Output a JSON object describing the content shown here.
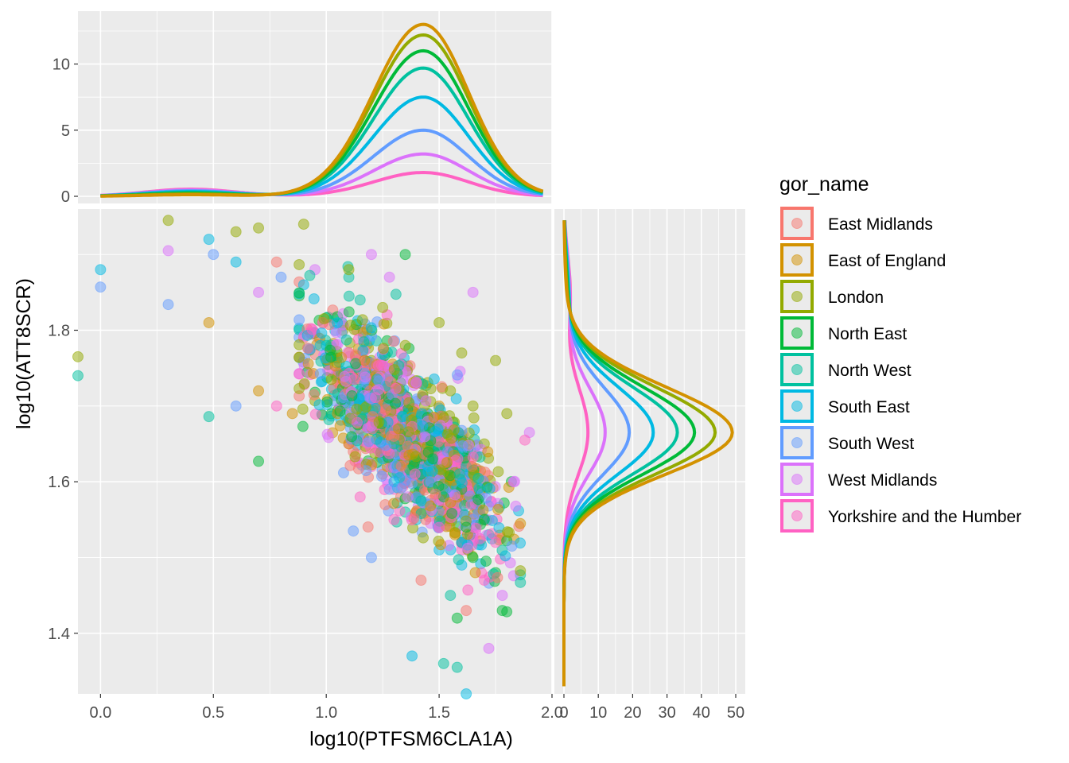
{
  "chart_data": {
    "type": "scatter",
    "xlabel": "log10(PTFSM6CLA1A)",
    "ylabel": "log10(ATT8SCR)",
    "xlim": [
      -0.1,
      2.0
    ],
    "ylim": [
      1.32,
      1.96
    ],
    "x_ticks": [
      "0.0",
      "0.5",
      "1.0",
      "1.5",
      "2.0"
    ],
    "y_ticks": [
      "1.4",
      "1.6",
      "1.8"
    ],
    "top_marginal": {
      "type": "density",
      "ylim": [
        0,
        14
      ],
      "y_ticks": [
        "0",
        "5",
        "10"
      ],
      "stacked_peaks_at_x_1_43": [
        1.8,
        3.2,
        5.0,
        7.5,
        9.7,
        11.0,
        12.2,
        13.0
      ]
    },
    "right_marginal": {
      "type": "density",
      "xlim": [
        0,
        50
      ],
      "x_ticks": [
        "0",
        "10",
        "20",
        "30",
        "40",
        "50"
      ],
      "stacked_peaks_at_y_1_665": [
        7,
        12,
        19,
        26,
        33,
        38,
        44,
        49
      ]
    },
    "legend": {
      "title": "gor_name",
      "entries": [
        {
          "name": "East Midlands",
          "color": "#F8766D"
        },
        {
          "name": "East of England",
          "color": "#D39200"
        },
        {
          "name": "London",
          "color": "#93AA00"
        },
        {
          "name": "North East",
          "color": "#00BA38"
        },
        {
          "name": "North West",
          "color": "#00C19F"
        },
        {
          "name": "South East",
          "color": "#00B9E3"
        },
        {
          "name": "South West",
          "color": "#619CFF"
        },
        {
          "name": "West Midlands",
          "color": "#DB72FB"
        },
        {
          "name": "Yorkshire and the Humber",
          "color": "#FF61C3"
        }
      ]
    },
    "series": [
      {
        "name": "East Midlands",
        "points": [
          [
            0.78,
            1.89
          ],
          [
            0.9,
            1.79
          ],
          [
            1.1,
            1.72
          ],
          [
            1.2,
            1.68
          ],
          [
            1.3,
            1.66
          ],
          [
            1.35,
            1.63
          ],
          [
            1.42,
            1.6
          ],
          [
            1.5,
            1.58
          ],
          [
            1.55,
            1.56
          ],
          [
            1.6,
            1.52
          ],
          [
            1.62,
            1.43
          ],
          [
            1.42,
            1.47
          ],
          [
            1.7,
            1.6
          ],
          [
            1.28,
            1.7
          ],
          [
            1.46,
            1.65
          ],
          [
            1.38,
            1.62
          ],
          [
            1.55,
            1.67
          ],
          [
            1.25,
            1.61
          ],
          [
            1.33,
            1.58
          ],
          [
            1.44,
            1.55
          ]
        ]
      },
      {
        "name": "East of England",
        "points": [
          [
            0.48,
            1.81
          ],
          [
            0.7,
            1.72
          ],
          [
            0.85,
            1.69
          ],
          [
            1.05,
            1.69
          ],
          [
            1.15,
            1.67
          ],
          [
            1.3,
            1.64
          ],
          [
            1.4,
            1.62
          ],
          [
            1.5,
            1.55
          ],
          [
            1.57,
            1.53
          ],
          [
            1.65,
            1.57
          ],
          [
            1.66,
            1.48
          ],
          [
            1.2,
            1.72
          ],
          [
            1.32,
            1.67
          ],
          [
            1.45,
            1.64
          ],
          [
            1.6,
            1.6
          ],
          [
            1.1,
            1.65
          ],
          [
            1.5,
            1.7
          ],
          [
            1.38,
            1.58
          ],
          [
            1.27,
            1.62
          ],
          [
            1.55,
            1.61
          ]
        ]
      },
      {
        "name": "London",
        "points": [
          [
            0.3,
            1.945
          ],
          [
            0.6,
            1.93
          ],
          [
            0.7,
            1.935
          ],
          [
            0.9,
            1.94
          ],
          [
            1.1,
            1.88
          ],
          [
            1.25,
            1.83
          ],
          [
            1.35,
            1.78
          ],
          [
            1.5,
            1.81
          ],
          [
            1.6,
            1.77
          ],
          [
            1.75,
            1.76
          ],
          [
            1.8,
            1.69
          ],
          [
            1.55,
            1.72
          ],
          [
            1.45,
            1.68
          ],
          [
            1.65,
            1.7
          ],
          [
            1.7,
            1.65
          ],
          [
            1.4,
            1.73
          ],
          [
            1.3,
            1.74
          ],
          [
            -0.1,
            1.765
          ],
          [
            1.2,
            1.76
          ],
          [
            1.6,
            1.66
          ]
        ]
      },
      {
        "name": "North East",
        "points": [
          [
            0.7,
            1.627
          ],
          [
            1.35,
            1.9
          ],
          [
            1.05,
            1.74
          ],
          [
            1.2,
            1.7
          ],
          [
            1.4,
            1.66
          ],
          [
            1.5,
            1.62
          ],
          [
            1.6,
            1.59
          ],
          [
            1.7,
            1.55
          ],
          [
            1.75,
            1.48
          ],
          [
            1.78,
            1.43
          ],
          [
            1.58,
            1.42
          ],
          [
            1.65,
            1.5
          ],
          [
            1.55,
            1.65
          ],
          [
            1.45,
            1.69
          ],
          [
            1.35,
            1.64
          ],
          [
            1.68,
            1.57
          ],
          [
            1.82,
            1.6
          ],
          [
            1.62,
            1.54
          ],
          [
            1.52,
            1.58
          ],
          [
            1.42,
            1.61
          ]
        ]
      },
      {
        "name": "North West",
        "points": [
          [
            0.48,
            1.686
          ],
          [
            1.1,
            1.87
          ],
          [
            1.15,
            1.84
          ],
          [
            1.0,
            1.78
          ],
          [
            1.2,
            1.7
          ],
          [
            1.3,
            1.65
          ],
          [
            1.45,
            1.6
          ],
          [
            1.55,
            1.57
          ],
          [
            1.6,
            1.52
          ],
          [
            1.52,
            1.36
          ],
          [
            1.58,
            1.355
          ],
          [
            1.55,
            1.45
          ],
          [
            1.68,
            1.58
          ],
          [
            1.72,
            1.53
          ],
          [
            1.4,
            1.68
          ],
          [
            1.25,
            1.67
          ],
          [
            1.35,
            1.56
          ],
          [
            1.62,
            1.62
          ],
          [
            -0.1,
            1.74
          ],
          [
            1.48,
            1.63
          ]
        ]
      },
      {
        "name": "South East",
        "points": [
          [
            0.48,
            1.92
          ],
          [
            0.6,
            1.89
          ],
          [
            0.9,
            1.86
          ],
          [
            1.0,
            1.76
          ],
          [
            1.1,
            1.71
          ],
          [
            1.2,
            1.67
          ],
          [
            1.3,
            1.6
          ],
          [
            1.4,
            1.55
          ],
          [
            1.5,
            1.51
          ],
          [
            1.6,
            1.49
          ],
          [
            1.7,
            1.55
          ],
          [
            1.62,
            1.32
          ],
          [
            1.38,
            1.37
          ],
          [
            1.45,
            1.62
          ],
          [
            1.35,
            1.66
          ],
          [
            1.55,
            1.6
          ],
          [
            1.25,
            1.63
          ],
          [
            1.15,
            1.7
          ],
          [
            1.65,
            1.57
          ],
          [
            0.0,
            1.88
          ]
        ]
      },
      {
        "name": "South West",
        "points": [
          [
            0.0,
            1.857
          ],
          [
            0.3,
            1.834
          ],
          [
            0.5,
            1.9
          ],
          [
            0.8,
            1.87
          ],
          [
            1.0,
            1.77
          ],
          [
            1.1,
            1.74
          ],
          [
            1.2,
            1.69
          ],
          [
            1.3,
            1.63
          ],
          [
            1.4,
            1.58
          ],
          [
            1.5,
            1.56
          ],
          [
            1.6,
            1.52
          ],
          [
            1.2,
            1.5
          ],
          [
            1.12,
            1.535
          ],
          [
            1.35,
            1.7
          ],
          [
            1.45,
            1.66
          ],
          [
            1.55,
            1.64
          ],
          [
            1.28,
            1.59
          ],
          [
            1.65,
            1.55
          ],
          [
            0.6,
            1.7
          ],
          [
            1.42,
            1.62
          ]
        ]
      },
      {
        "name": "West Midlands",
        "points": [
          [
            0.3,
            1.905
          ],
          [
            0.7,
            1.85
          ],
          [
            0.95,
            1.88
          ],
          [
            1.2,
            1.9
          ],
          [
            1.28,
            1.87
          ],
          [
            1.65,
            1.85
          ],
          [
            1.2,
            1.71
          ],
          [
            1.3,
            1.66
          ],
          [
            1.4,
            1.63
          ],
          [
            1.5,
            1.59
          ],
          [
            1.6,
            1.56
          ],
          [
            1.78,
            1.45
          ],
          [
            1.83,
            1.6
          ],
          [
            1.9,
            1.665
          ],
          [
            1.72,
            1.38
          ],
          [
            1.45,
            1.68
          ],
          [
            1.55,
            1.62
          ],
          [
            1.35,
            1.6
          ],
          [
            1.25,
            1.64
          ],
          [
            1.65,
            1.53
          ]
        ]
      },
      {
        "name": "Yorkshire and the Humber",
        "points": [
          [
            0.78,
            1.7
          ],
          [
            1.1,
            1.65
          ],
          [
            1.2,
            1.62
          ],
          [
            1.3,
            1.59
          ],
          [
            1.4,
            1.56
          ],
          [
            1.5,
            1.54
          ],
          [
            1.6,
            1.51
          ],
          [
            1.7,
            1.47
          ],
          [
            1.88,
            1.655
          ],
          [
            1.75,
            1.52
          ],
          [
            1.45,
            1.6
          ],
          [
            1.35,
            1.64
          ],
          [
            1.55,
            1.58
          ],
          [
            1.25,
            1.67
          ],
          [
            1.62,
            1.6
          ],
          [
            1.15,
            1.58
          ],
          [
            1.4,
            1.66
          ],
          [
            1.48,
            1.61
          ],
          [
            1.3,
            1.55
          ],
          [
            1.58,
            1.56
          ]
        ]
      }
    ]
  }
}
